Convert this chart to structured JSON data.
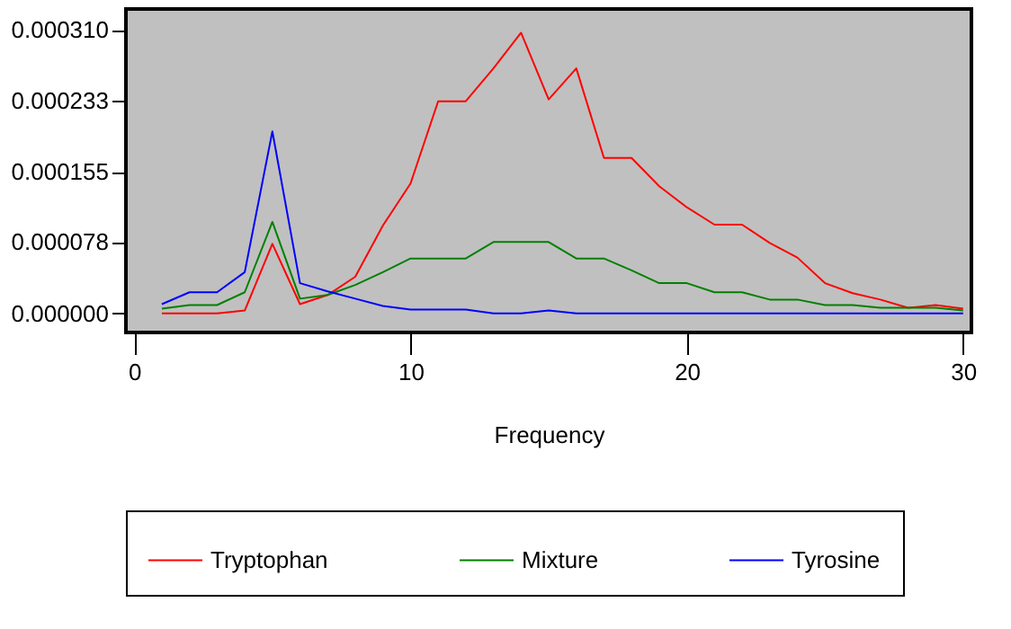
{
  "chart_data": {
    "type": "line",
    "xlabel": "Frequency",
    "x": [
      1,
      2,
      3,
      4,
      5,
      6,
      7,
      8,
      9,
      10,
      11,
      12,
      13,
      14,
      15,
      16,
      17,
      18,
      19,
      20,
      21,
      22,
      23,
      24,
      25,
      26,
      27,
      28,
      29,
      30
    ],
    "series": [
      {
        "name": "Tryptophan",
        "color": "#ff0000",
        "values": [
          0,
          0,
          0,
          3e-06,
          7.6e-05,
          1e-05,
          2e-05,
          4e-05,
          9.6e-05,
          0.000142,
          0.000232,
          0.000232,
          0.000268,
          0.000307,
          0.000234,
          0.000268,
          0.00017,
          0.00017,
          0.000139,
          0.000116,
          9.7e-05,
          9.7e-05,
          7.7e-05,
          6.1e-05,
          3.3e-05,
          2.2e-05,
          1.5e-05,
          6e-06,
          9e-06,
          5e-06
        ]
      },
      {
        "name": "Mixture",
        "color": "#008000",
        "values": [
          5e-06,
          9e-06,
          9e-06,
          2.3e-05,
          0.0001,
          1.6e-05,
          2e-05,
          3.1e-05,
          4.5e-05,
          6e-05,
          6e-05,
          6e-05,
          7.8e-05,
          7.8e-05,
          7.8e-05,
          6e-05,
          6e-05,
          4.7e-05,
          3.3e-05,
          3.3e-05,
          2.3e-05,
          2.3e-05,
          1.5e-05,
          1.5e-05,
          9e-06,
          9e-06,
          6e-06,
          6e-06,
          6e-06,
          3e-06
        ]
      },
      {
        "name": "Tyrosine",
        "color": "#0000ff",
        "values": [
          1e-05,
          2.3e-05,
          2.3e-05,
          4.5e-05,
          0.000199,
          3.3e-05,
          2.4e-05,
          1.6e-05,
          8e-06,
          4e-06,
          4e-06,
          4e-06,
          0,
          0,
          3e-06,
          0,
          0,
          0,
          0,
          0,
          0,
          0,
          0,
          0,
          0,
          0,
          0,
          0,
          0,
          0
        ]
      }
    ],
    "xlim": [
      -0.3,
      30.3
    ],
    "xticks": [
      0,
      10,
      20,
      30
    ],
    "ylim": [
      -2.1e-05,
      0.000333
    ],
    "yticks": [
      {
        "value": 0,
        "label": "0.000000"
      },
      {
        "value": 7.8e-05,
        "label": "0.000078"
      },
      {
        "value": 0.000155,
        "label": "0.000155"
      },
      {
        "value": 0.000233,
        "label": "0.000233"
      },
      {
        "value": 0.00031,
        "label": "0.000310"
      }
    ],
    "grid": false,
    "legend": "bottom",
    "marker": "none",
    "line_style": "solid"
  }
}
